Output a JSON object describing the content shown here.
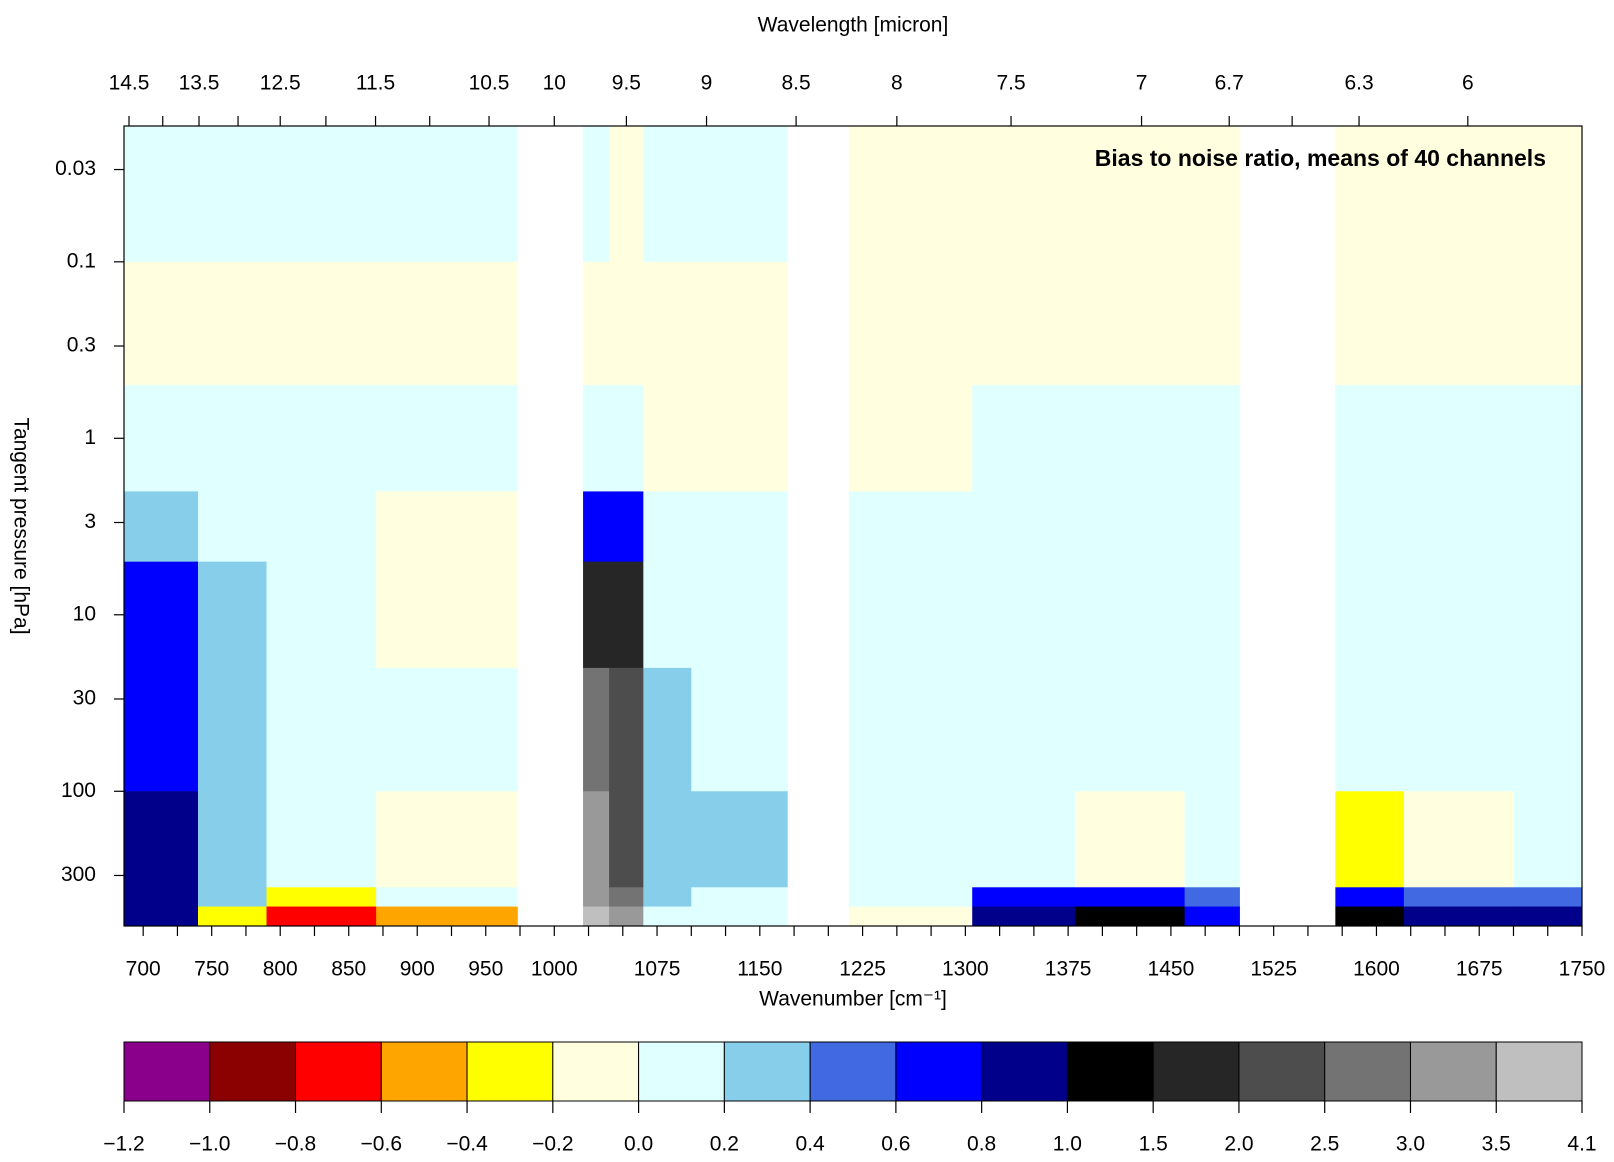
{
  "chart_data": {
    "type": "heatmap",
    "title": "Bias to noise ratio, means of 40 channels",
    "x_label": "Wavenumber [cm⁻¹]",
    "x2_label": "Wavelength [micron]",
    "y_label": "Tangent pressure [hPa]",
    "xlim": [
      686,
      1750
    ],
    "xticks": [
      700,
      750,
      800,
      850,
      900,
      950,
      1000,
      1075,
      1150,
      1225,
      1300,
      1375,
      1450,
      1525,
      1600,
      1675,
      1750
    ],
    "xticks_minor": [
      725,
      775,
      825,
      875,
      925,
      975,
      1025,
      1050,
      1100,
      1125,
      1175,
      1200,
      1250,
      1275,
      1325,
      1350,
      1400,
      1425,
      1475,
      1500,
      1550,
      1575,
      1625,
      1650,
      1700,
      1725
    ],
    "x2ticks": [
      14.5,
      13.5,
      12.5,
      11.5,
      10.5,
      10,
      9.5,
      9,
      8.5,
      8,
      7.5,
      7,
      6.7,
      6.3,
      6
    ],
    "x2ticks_minor": [
      14,
      13,
      12,
      11,
      6.5
    ],
    "ylim": [
      0.017,
      580
    ],
    "y_log": true,
    "y_inverted": true,
    "yticks": [
      0.03,
      0.1,
      0.3,
      1,
      3,
      10,
      30,
      100,
      300
    ],
    "x_edges": [
      686,
      740,
      790,
      870,
      973,
      1021,
      1040,
      1065,
      1100,
      1170,
      1215,
      1305,
      1380,
      1460,
      1500,
      1570,
      1620,
      1700,
      1750
    ],
    "y_edges": [
      0.017,
      0.1,
      0.5,
      2,
      5,
      20,
      100,
      350,
      450,
      580
    ],
    "z": [
      [
        0.1,
        -0.1,
        0.1,
        0.3,
        0.7,
        0.7,
        0.8,
        0.9,
        0.9
      ],
      [
        0.1,
        -0.1,
        0.1,
        0.1,
        0.3,
        0.3,
        0.2,
        0.3,
        -0.3
      ],
      [
        0.1,
        -0.1,
        0.05,
        0.05,
        0.1,
        0.1,
        0.1,
        -0.3,
        -0.7
      ],
      [
        0.1,
        -0.1,
        0.1,
        -0.1,
        -0.1,
        0.1,
        -0.1,
        0.1,
        -0.5
      ],
      [
        null,
        null,
        null,
        null,
        null,
        null,
        null,
        null,
        null
      ],
      [
        0.1,
        -0.1,
        0.1,
        0.7,
        1.7,
        2.5,
        3.0,
        3.3,
        3.6
      ],
      [
        -0.1,
        -0.1,
        0.1,
        0.7,
        1.5,
        2.0,
        2.3,
        2.7,
        3.2
      ],
      [
        0.1,
        -0.1,
        -0.1,
        0.1,
        0.1,
        0.2,
        0.3,
        0.2,
        0.1
      ],
      [
        0.1,
        -0.1,
        -0.1,
        0.1,
        0.1,
        0.1,
        0.3,
        0.1,
        0.1
      ],
      [
        null,
        null,
        null,
        null,
        null,
        null,
        null,
        null,
        null
      ],
      [
        -0.1,
        -0.1,
        -0.1,
        0.1,
        0.1,
        0.1,
        0.1,
        0.1,
        -0.1
      ],
      [
        -0.1,
        -0.1,
        0.1,
        0.1,
        0.1,
        0.1,
        0.1,
        0.7,
        0.9
      ],
      [
        -0.1,
        -0.1,
        0.1,
        0.1,
        0.1,
        0.1,
        -0.1,
        0.7,
        1.2
      ],
      [
        -0.1,
        -0.1,
        0.1,
        0.1,
        0.1,
        0.1,
        0.1,
        0.5,
        0.7
      ],
      [
        null,
        null,
        null,
        null,
        null,
        null,
        null,
        null,
        null
      ],
      [
        -0.1,
        -0.1,
        0.1,
        0.1,
        0.1,
        0.1,
        -0.3,
        0.7,
        1.1
      ],
      [
        -0.1,
        -0.1,
        0.1,
        0.1,
        0.1,
        0.1,
        -0.1,
        0.5,
        0.9
      ],
      [
        -0.1,
        -0.1,
        0.1,
        0.1,
        0.1,
        0.1,
        0.1,
        0.5,
        0.9
      ]
    ],
    "color_breaks": [
      {
        "value": -1.2,
        "label": "−1.2"
      },
      {
        "value": -1.0,
        "label": "−1.0"
      },
      {
        "value": -0.8,
        "label": "−0.8"
      },
      {
        "value": -0.6,
        "label": "−0.6"
      },
      {
        "value": -0.4,
        "label": "−0.4"
      },
      {
        "value": -0.2,
        "label": "−0.2"
      },
      {
        "value": 0,
        "label": "0.0"
      },
      0.2,
      0.4,
      0.6,
      0.8,
      {
        "value": 1,
        "label": "1.0"
      },
      1.5,
      {
        "value": 2,
        "label": "2.0"
      },
      2.5,
      {
        "value": 3,
        "label": "3.0"
      },
      3.5,
      4.1
    ],
    "colors": [
      "#8b008b",
      "#8b0000",
      "#ff0000",
      "#ffa500",
      "#ffff00",
      "#ffffe0",
      "#e0ffff",
      "#87ceeb",
      "#4169e1",
      "#0000ff",
      "#00008b",
      "#000000",
      "#262626",
      "#4d4d4d",
      "#737373",
      "#999999",
      "#bfbfbf"
    ]
  }
}
